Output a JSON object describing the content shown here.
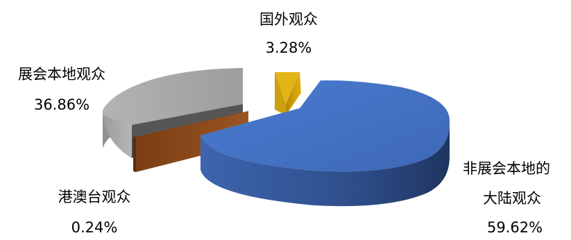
{
  "chart_data": {
    "type": "pie",
    "style": "3d-exploded",
    "slices": [
      {
        "name": "国外观众",
        "name_lines": [
          "国外观众"
        ],
        "value": 3.28,
        "label": "3.28%",
        "color": "#d4a50a"
      },
      {
        "name": "非展会本地的大陆观众",
        "name_lines": [
          "非展会本地的",
          "大陆观众"
        ],
        "value": 59.62,
        "label": "59.62%",
        "color": "#4472c4"
      },
      {
        "name": "港澳台观众",
        "name_lines": [
          "港澳台观众"
        ],
        "value": 0.24,
        "label": "0.24%",
        "color": "#8b4a1c"
      },
      {
        "name": "展会本地观众",
        "name_lines": [
          "展会本地观众"
        ],
        "value": 36.86,
        "label": "36.86%",
        "color": "#a6a6a6"
      }
    ]
  }
}
